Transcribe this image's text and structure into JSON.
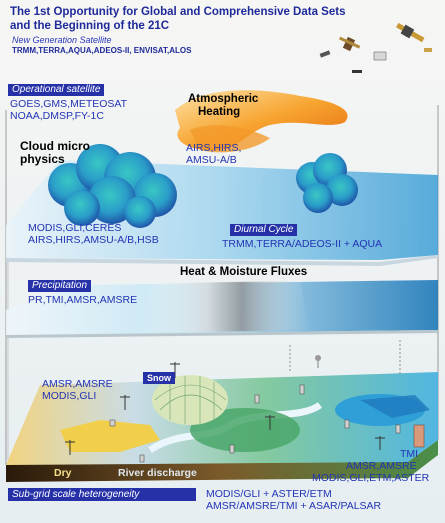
{
  "header": {
    "title_line1": "The 1st Opportunity for Global and Comprehensive Data Sets",
    "title_line2": "and the Beginning of the 21C",
    "subtitle": "New Generation Satellite",
    "satellites": "TRMM,TERRA,AQUA,ADEOS-II, ENVISAT,ALOS"
  },
  "layer1": {
    "tag": "Operational satellite",
    "sensors_line1": "GOES,GMS,METEOSAT",
    "sensors_line2": "NOAA,DMSP,FY-1C",
    "heating_line1": "Atmospheric",
    "heating_line2": "Heating",
    "heating_sensors_line1": "AIRS,HIRS,",
    "heating_sensors_line2": "AMSU-A/B",
    "cloud_line1": "Cloud micro",
    "cloud_line2": "physics",
    "cloud_sensors_line1": "MODIS,GLI,CERES",
    "cloud_sensors_line2": "AIRS,HIRS,AMSU-A/B,HSB",
    "diurnal_tag": "Diurnal Cycle",
    "diurnal_sensors": "TRMM,TERRA/ADEOS-II + AQUA"
  },
  "layer2": {
    "title": "Heat & Moisture Fluxes",
    "tag": "Precipitation",
    "sensors": "PR,TMI,AMSR,AMSRE"
  },
  "layer3": {
    "snow": "Snow",
    "left_sensors_line1": "AMSR,AMSRE",
    "left_sensors_line2": "MODIS,GLI",
    "dry": "Dry",
    "river": "River discharge",
    "right_line1": "TMI",
    "right_line2": "AMSR,AMSRE",
    "right_line3": "MODIS,GLI,ETM,ASTER"
  },
  "footer": {
    "tag": "Sub-grid scale heterogeneity",
    "line1": "MODIS/GLI + ASTER/ETM",
    "line2": "AMSR/AMSRE/TMI + ASAR/PALSAR"
  },
  "colors": {
    "text_blue": "#2234b4",
    "tag_bg": "#2631a8",
    "sea_blue": "#9fd6ee",
    "heating_orange": "#f08a1c"
  }
}
